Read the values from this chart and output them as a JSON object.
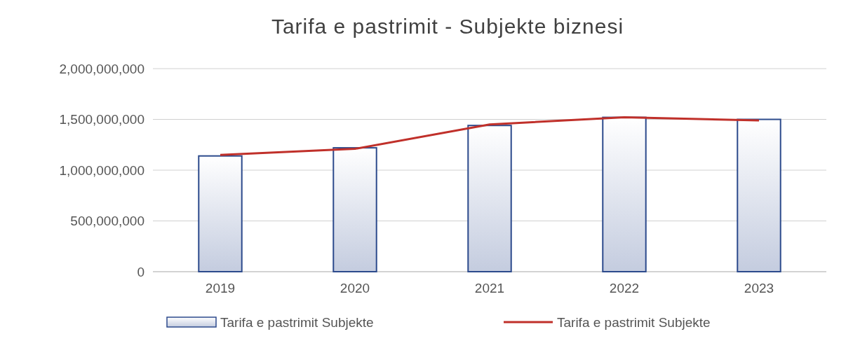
{
  "chart_data": {
    "type": "bar",
    "title": "Tarifa e pastrimit - Subjekte biznesi",
    "categories": [
      "2019",
      "2020",
      "2021",
      "2022",
      "2023"
    ],
    "series": [
      {
        "name": "Tarifa e pastrimit Subjekte",
        "color": "#2c4a8c",
        "values": [
          1140000000,
          1220000000,
          1440000000,
          1520000000,
          1500000000
        ]
      },
      {
        "name": "Tarifa e pastrimit Subjekte",
        "type": "line",
        "color": "#c0302a",
        "values": [
          1150000000,
          1210000000,
          1450000000,
          1520000000,
          1490000000
        ]
      }
    ],
    "ylim": [
      0,
      2000000000
    ],
    "yticks": [
      {
        "value": 0,
        "label": "0"
      },
      {
        "value": 500000000,
        "label": "500,000,000"
      },
      {
        "value": 1000000000,
        "label": "1,000,000,000"
      },
      {
        "value": 1500000000,
        "label": "1,500,000,000"
      },
      {
        "value": 2000000000,
        "label": "2,000,000,000"
      }
    ],
    "grid": "y",
    "legend": "bottom",
    "marker": "none",
    "line_style": "solid"
  }
}
